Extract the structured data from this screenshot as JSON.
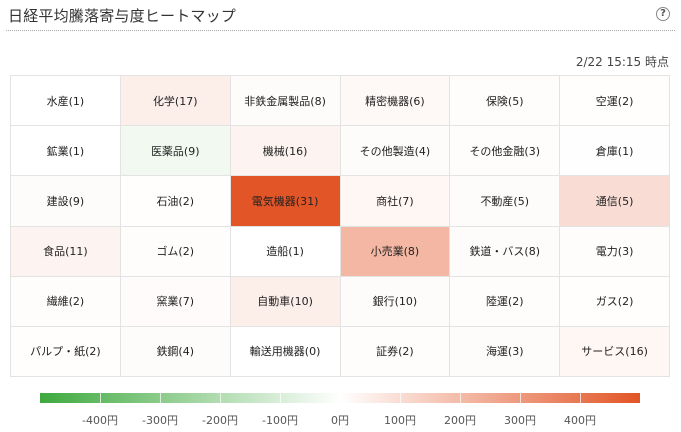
{
  "header": {
    "title": "日経平均騰落寄与度ヒートマップ",
    "help_glyph": "?"
  },
  "timestamp": "2/22 15:15 時点",
  "colors": {
    "negative_max": "#3ea93e",
    "neutral": "#ffffff",
    "positive_max": "#e25526"
  },
  "sectors": [
    {
      "label": "水産(1)",
      "value": 0
    },
    {
      "label": "化学(17)",
      "value": 40
    },
    {
      "label": "非鉄金属製品(8)",
      "value": 8
    },
    {
      "label": "精密機器(6)",
      "value": 15
    },
    {
      "label": "保険(5)",
      "value": 5
    },
    {
      "label": "空運(2)",
      "value": 3
    },
    {
      "label": "鉱業(1)",
      "value": 0
    },
    {
      "label": "医薬品(9)",
      "value": -30
    },
    {
      "label": "機械(16)",
      "value": 25
    },
    {
      "label": "その他製造(4)",
      "value": 8
    },
    {
      "label": "その他金融(3)",
      "value": 5
    },
    {
      "label": "倉庫(1)",
      "value": 2
    },
    {
      "label": "建設(9)",
      "value": 8
    },
    {
      "label": "石油(2)",
      "value": 3
    },
    {
      "label": "電気機器(31)",
      "value": 400
    },
    {
      "label": "商社(7)",
      "value": 20
    },
    {
      "label": "不動産(5)",
      "value": 8
    },
    {
      "label": "通信(5)",
      "value": 80
    },
    {
      "label": "食品(11)",
      "value": 25
    },
    {
      "label": "ゴム(2)",
      "value": 5
    },
    {
      "label": "造船(1)",
      "value": 0
    },
    {
      "label": "小売業(8)",
      "value": 170
    },
    {
      "label": "鉄道・バス(8)",
      "value": 8
    },
    {
      "label": "電力(3)",
      "value": 5
    },
    {
      "label": "繊維(2)",
      "value": 5
    },
    {
      "label": "窯業(7)",
      "value": 10
    },
    {
      "label": "自動車(10)",
      "value": 40
    },
    {
      "label": "銀行(10)",
      "value": 8
    },
    {
      "label": "陸運(2)",
      "value": 5
    },
    {
      "label": "ガス(2)",
      "value": 3
    },
    {
      "label": "パルプ・紙(2)",
      "value": 3
    },
    {
      "label": "鉄鋼(4)",
      "value": 8
    },
    {
      "label": "輸送用機器(0)",
      "value": 0
    },
    {
      "label": "証券(2)",
      "value": 5
    },
    {
      "label": "海運(3)",
      "value": 8
    },
    {
      "label": "サービス(16)",
      "value": 20
    }
  ],
  "legend": {
    "min": -500,
    "max": 500,
    "ticks": [
      {
        "value": -400,
        "label": "-400円"
      },
      {
        "value": -300,
        "label": "-300円"
      },
      {
        "value": -200,
        "label": "-200円"
      },
      {
        "value": -100,
        "label": "-100円"
      },
      {
        "value": 0,
        "label": "0円"
      },
      {
        "value": 100,
        "label": "100円"
      },
      {
        "value": 200,
        "label": "200円"
      },
      {
        "value": 300,
        "label": "300円"
      },
      {
        "value": 400,
        "label": "400円"
      }
    ]
  }
}
